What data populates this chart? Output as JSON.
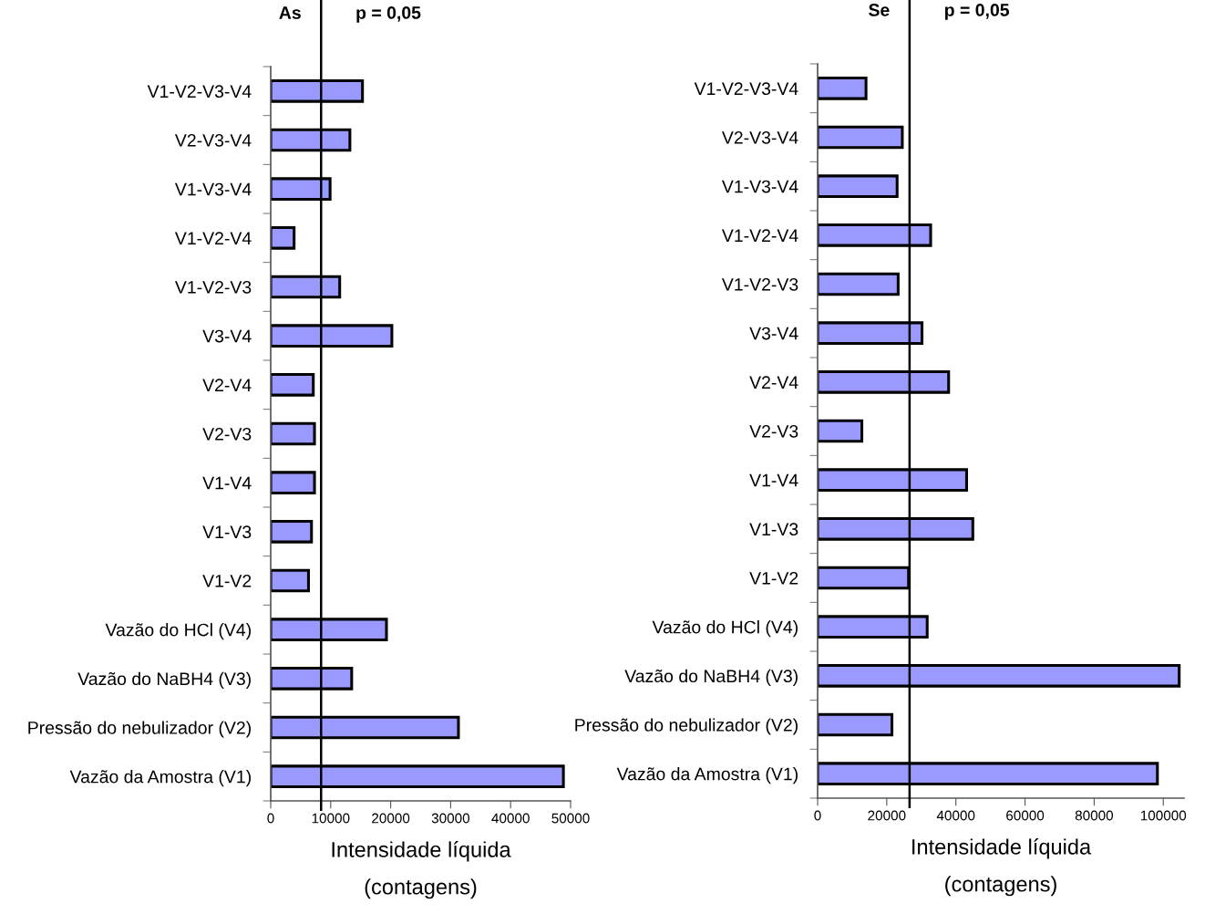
{
  "chart_data": [
    {
      "type": "bar",
      "orientation": "horizontal",
      "title": "As",
      "xlabel": "Intensidade líquida\n(contagens)",
      "categories": [
        "V1-V2-V3-V4",
        "V2-V3-V4",
        "V1-V3-V4",
        "V1-V2-V4",
        "V1-V2-V3",
        "V3-V4",
        "V2-V4",
        "V2-V3",
        "V1-V4",
        "V1-V3",
        "V1-V2",
        "Vazão do HCl (V4)",
        "Vazão do NaBH4 (V3)",
        "Pressão do nebulizador (V2)",
        "Vazão da Amostra (V1)"
      ],
      "values": [
        15300,
        13200,
        9900,
        3900,
        11500,
        20200,
        7100,
        7300,
        7300,
        6800,
        6300,
        19300,
        13500,
        31300,
        48800
      ],
      "color": "#9999ff",
      "xlim": [
        0,
        50000
      ],
      "xticks": [
        0,
        10000,
        20000,
        30000,
        40000,
        50000
      ],
      "grid": false,
      "annotations": [
        "p = 0,05"
      ],
      "ref_lines": [
        {
          "axis": "x",
          "value": 8400,
          "color": "#000000"
        }
      ]
    },
    {
      "type": "bar",
      "orientation": "horizontal",
      "title": "Se",
      "xlabel": "Intensidade líquida\n(contagens)",
      "categories": [
        "V1-V2-V3-V4",
        "V2-V3-V4",
        "V1-V3-V4",
        "V1-V2-V4",
        "V1-V2-V3",
        "V3-V4",
        "V2-V4",
        "V2-V3",
        "V1-V4",
        "V1-V3",
        "V1-V2",
        "Vazão do HCl (V4)",
        "Vazão do NaBH4 (V3)",
        "Pressão do nebulizador (V2)",
        "Vazão da Amostra (V1)"
      ],
      "values": [
        14000,
        24500,
        23000,
        32700,
        23300,
        30200,
        37900,
        12800,
        43100,
        44900,
        26300,
        31700,
        104600,
        21500,
        98300
      ],
      "color": "#9999ff",
      "xlim": [
        0,
        106000
      ],
      "xticks": [
        0,
        20000,
        40000,
        60000,
        80000,
        100000
      ],
      "grid": false,
      "annotations": [
        "p = 0,05"
      ],
      "ref_lines": [
        {
          "axis": "x",
          "value": 26600,
          "color": "#000000"
        }
      ]
    }
  ]
}
